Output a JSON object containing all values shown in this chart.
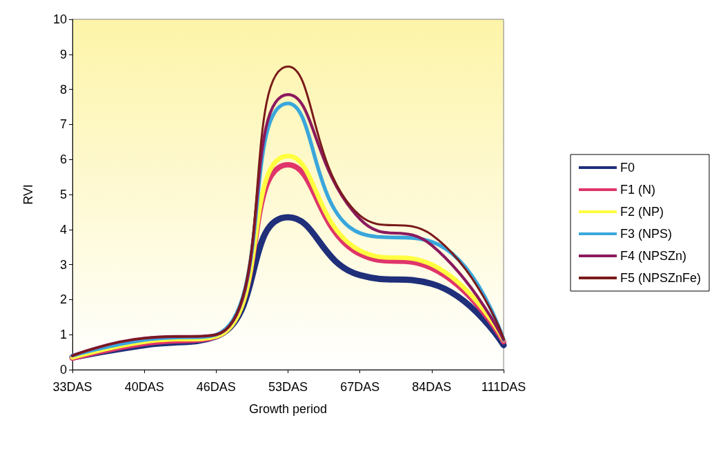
{
  "chart_data": {
    "type": "line",
    "xlabel": "Growth period",
    "ylabel": "RVI",
    "categories": [
      "33DAS",
      "40DAS",
      "46DAS",
      "53DAS",
      "67DAS",
      "84DAS",
      "111DAS"
    ],
    "ylim": [
      0,
      10
    ],
    "yticks": [
      0,
      1,
      2,
      3,
      4,
      5,
      6,
      7,
      8,
      9,
      10
    ],
    "grid": false,
    "legend": "right",
    "marker": "none",
    "line_style": "solid",
    "series": [
      {
        "name": "F0",
        "color": "#1f2f7a",
        "values": [
          0.35,
          0.7,
          0.95,
          4.35,
          2.7,
          2.45,
          0.7
        ]
      },
      {
        "name": "F1 (N)",
        "color": "#e0356a",
        "values": [
          0.33,
          0.75,
          0.95,
          5.85,
          3.3,
          2.9,
          0.8
        ]
      },
      {
        "name": "F2 (NP)",
        "color": "#ffff40",
        "values": [
          0.35,
          0.8,
          0.95,
          6.1,
          3.4,
          3.0,
          0.85
        ]
      },
      {
        "name": "F3 (NPS)",
        "color": "#3aa7dc",
        "values": [
          0.4,
          0.85,
          1.0,
          7.6,
          3.9,
          3.65,
          0.85
        ]
      },
      {
        "name": "F4 (NPSZn)",
        "color": "#8b1a5e",
        "values": [
          0.4,
          0.9,
          1.0,
          7.85,
          4.3,
          3.55,
          0.85
        ]
      },
      {
        "name": "F5 (NPSZnFe)",
        "color": "#7a1a1a",
        "values": [
          0.4,
          0.9,
          1.0,
          8.65,
          4.4,
          3.85,
          0.9
        ]
      }
    ]
  }
}
